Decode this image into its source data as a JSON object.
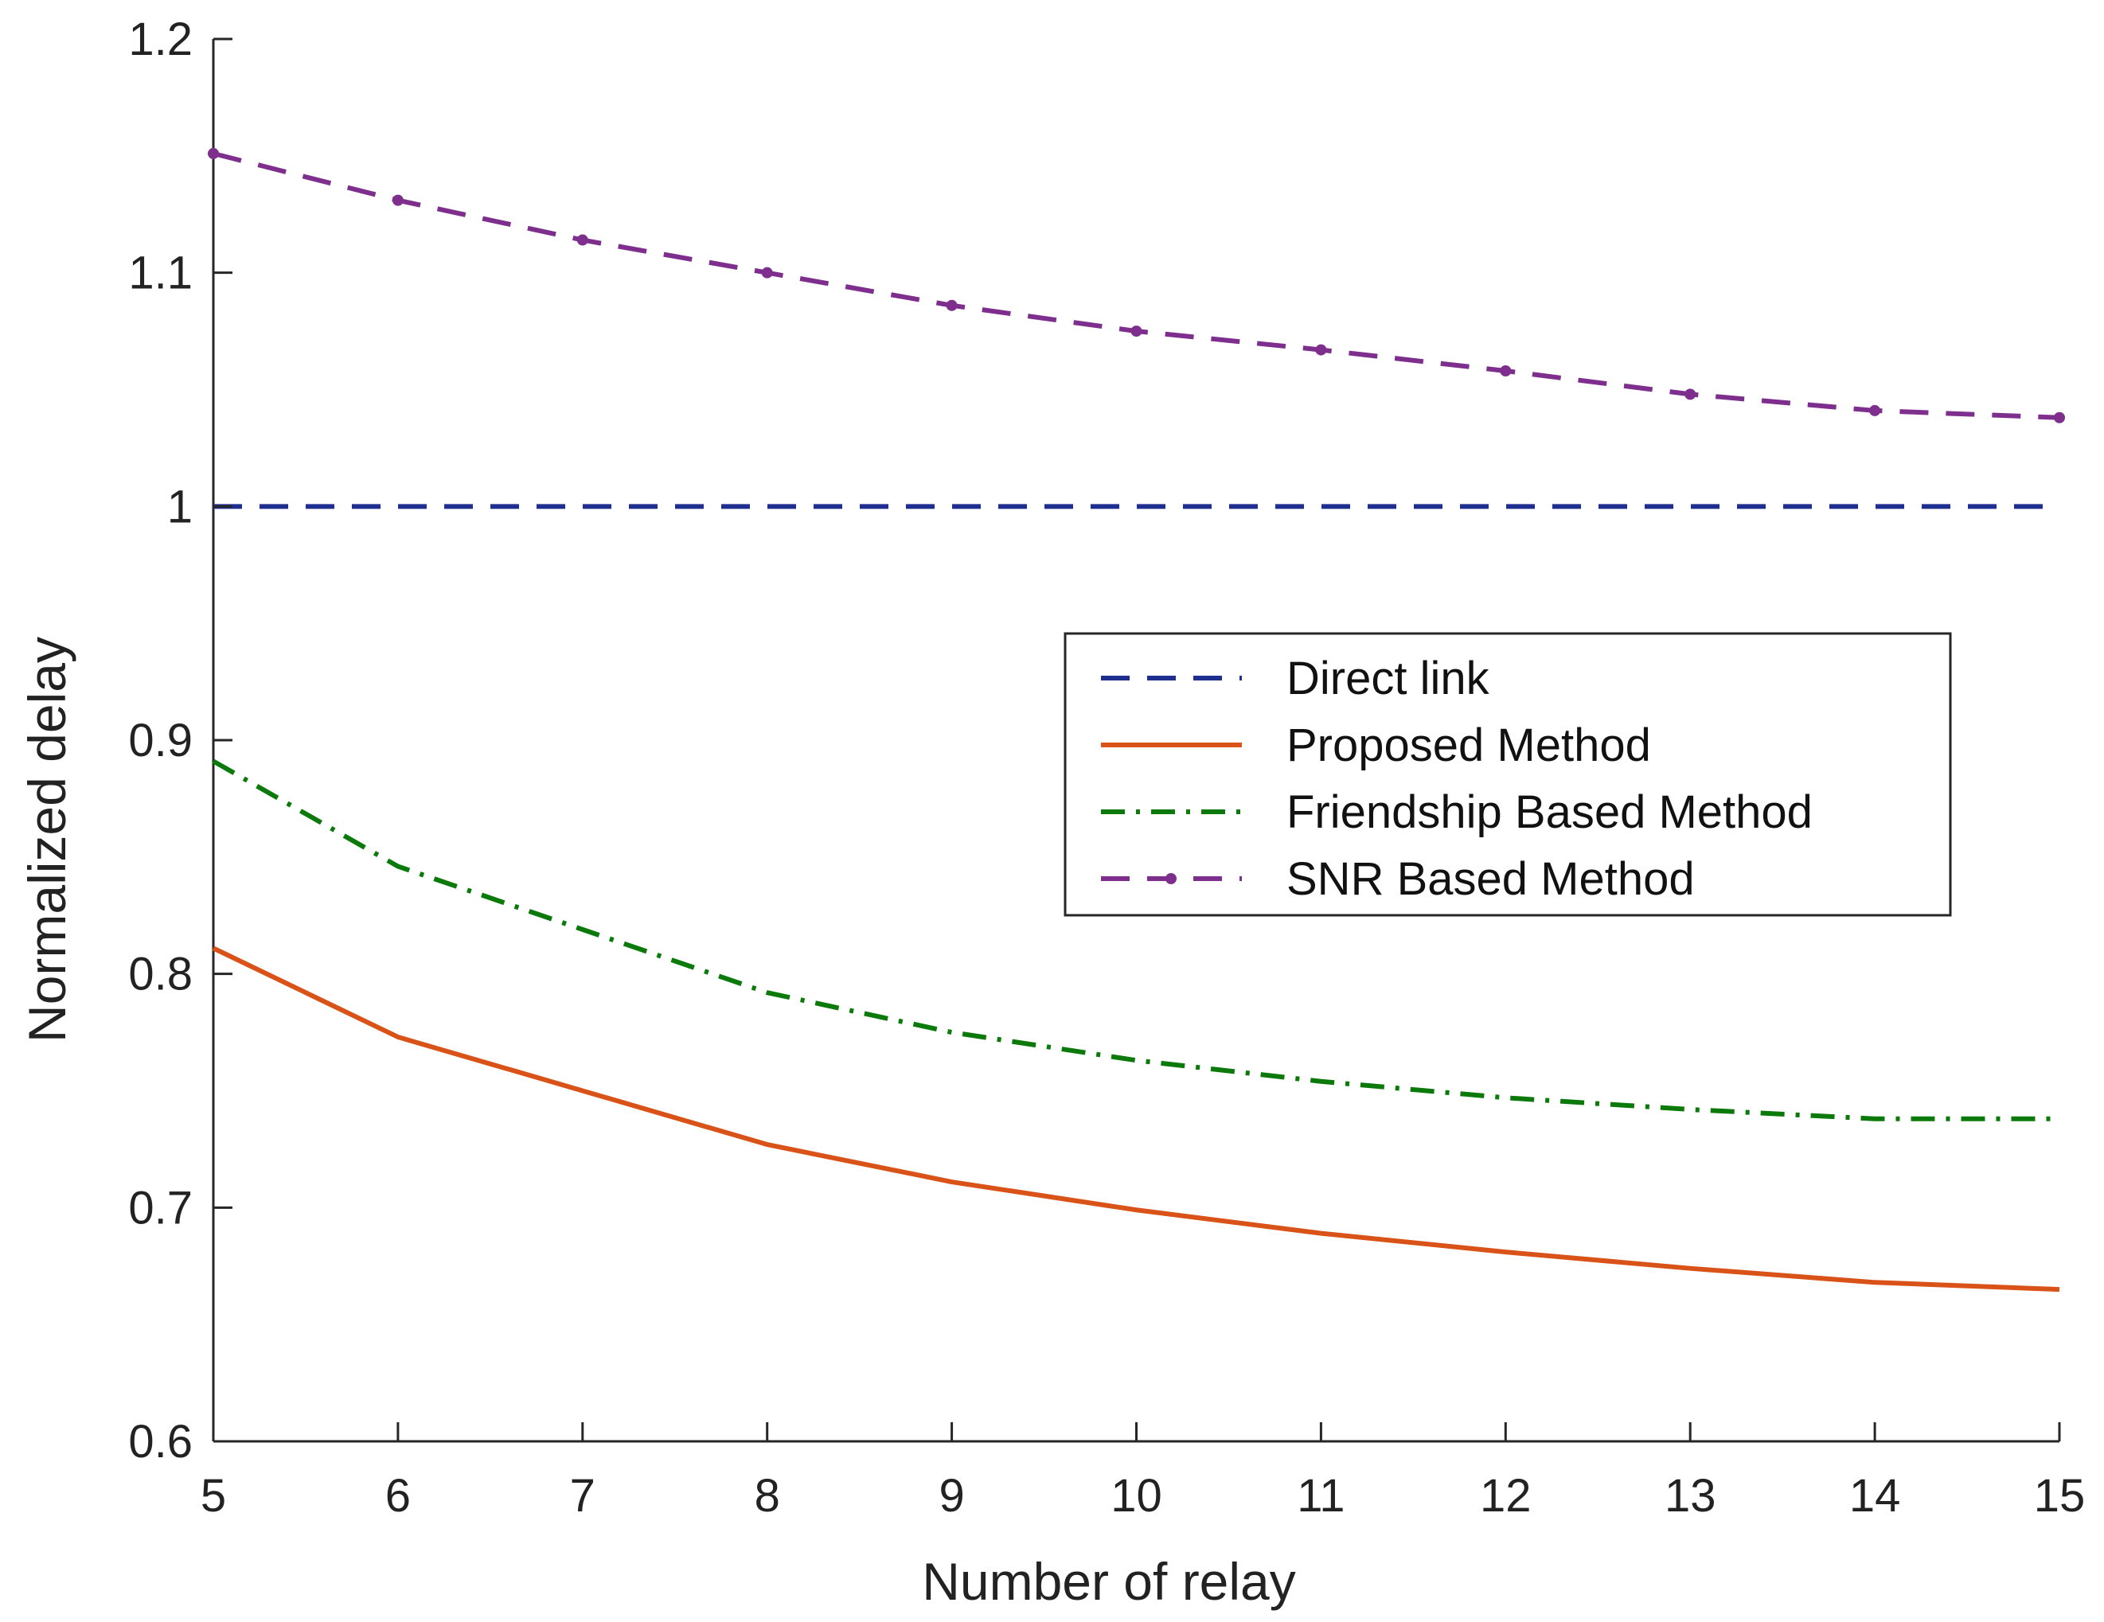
{
  "chart_data": {
    "type": "line",
    "title": "",
    "xlabel": "Number of relay",
    "ylabel": "Normalized delay",
    "xlim": [
      5,
      15
    ],
    "ylim": [
      0.6,
      1.2
    ],
    "xticks": [
      5,
      6,
      7,
      8,
      9,
      10,
      11,
      12,
      13,
      14,
      15
    ],
    "xtick_labels": [
      "5",
      "6",
      "7",
      "8",
      "9",
      "10",
      "11",
      "12",
      "13",
      "14",
      "15"
    ],
    "yticks": [
      0.6,
      0.7,
      0.8,
      0.9,
      1.0,
      1.1,
      1.2
    ],
    "ytick_labels": [
      "0.6",
      "0.7",
      "0.8",
      "0.9",
      "1",
      "1.1",
      "1.2"
    ],
    "grid": false,
    "legend_position": "center-right",
    "x": [
      5,
      6,
      7,
      8,
      9,
      10,
      11,
      12,
      13,
      14,
      15
    ],
    "series": [
      {
        "name": "Direct link",
        "color": "#1f2f8f",
        "style": "dashed",
        "marker": "none",
        "values": [
          1.0,
          1.0,
          1.0,
          1.0,
          1.0,
          1.0,
          1.0,
          1.0,
          1.0,
          1.0,
          1.0
        ]
      },
      {
        "name": "Proposed Method",
        "color": "#d95319",
        "style": "solid",
        "marker": "none",
        "values": [
          0.811,
          0.773,
          0.75,
          0.727,
          0.711,
          0.699,
          0.689,
          0.681,
          0.674,
          0.668,
          0.665
        ]
      },
      {
        "name": "Friendship Based Method",
        "color": "#0b7a0b",
        "style": "dashdot",
        "marker": "none",
        "values": [
          0.891,
          0.846,
          0.819,
          0.792,
          0.775,
          0.763,
          0.754,
          0.747,
          0.742,
          0.738,
          0.738
        ]
      },
      {
        "name": "SNR Based Method",
        "color": "#7e2f8e",
        "style": "dashed",
        "marker": "dot",
        "values": [
          1.151,
          1.131,
          1.114,
          1.1,
          1.086,
          1.075,
          1.067,
          1.058,
          1.048,
          1.041,
          1.038
        ]
      }
    ]
  }
}
